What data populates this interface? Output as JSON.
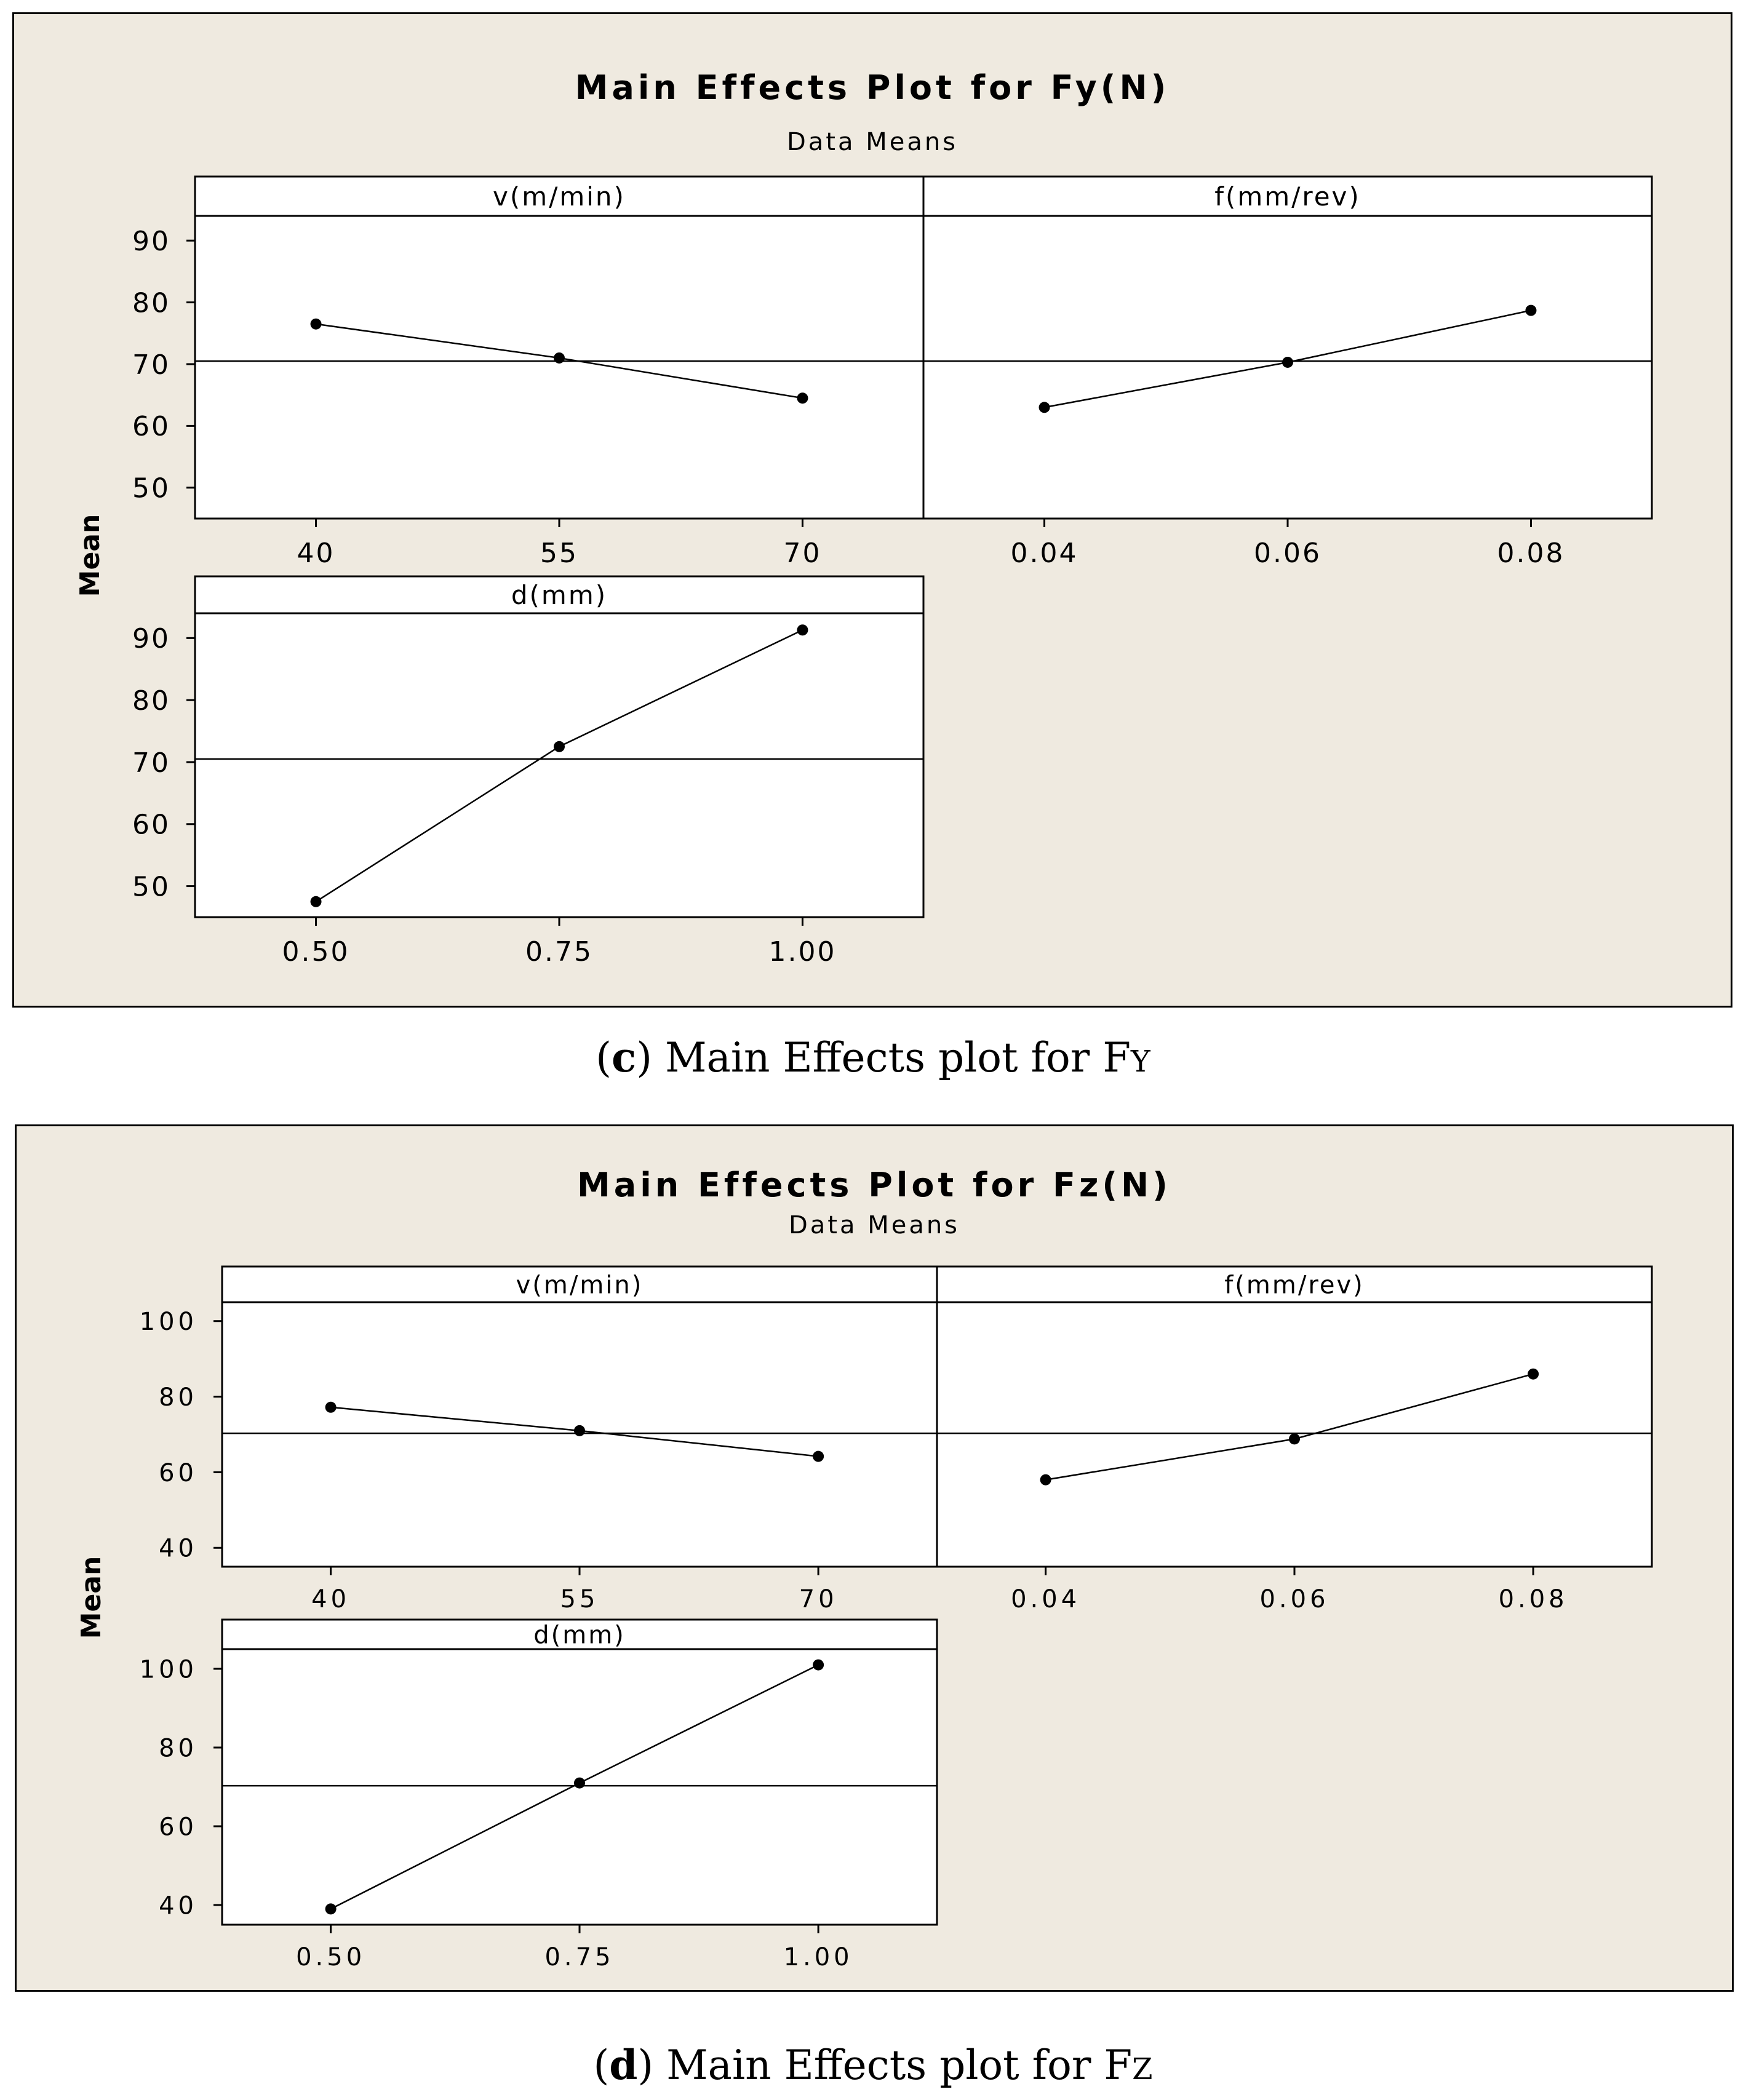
{
  "figures": [
    {
      "title": "Main Effects Plot for Fy(N)",
      "subtitle": "Data Means",
      "ylabel": "Mean",
      "caption": {
        "letter": "c",
        "text": "Main Effects plot for F",
        "sub": "Y"
      }
    },
    {
      "title": "Main Effects Plot for Fz(N)",
      "subtitle": "Data Means",
      "ylabel": "Mean",
      "caption": {
        "letter": "d",
        "text": "Main Effects plot for F",
        "sub": "Z"
      }
    }
  ],
  "chart_data": [
    {
      "type": "line",
      "title": "Main Effects Plot for Fy(N)",
      "subtitle": "Data Means",
      "ylabel": "Mean",
      "ylim": [
        45,
        94
      ],
      "yticks": [
        50,
        60,
        70,
        80,
        90
      ],
      "grand_mean": 70.5,
      "panels": [
        {
          "name": "v(m/min)",
          "categories": [
            "40",
            "55",
            "70"
          ],
          "values": [
            76.5,
            71,
            64.5
          ]
        },
        {
          "name": "f(mm/rev)",
          "categories": [
            "0.04",
            "0.06",
            "0.08"
          ],
          "values": [
            63,
            70.3,
            78.7
          ]
        },
        {
          "name": "d(mm)",
          "categories": [
            "0.50",
            "0.75",
            "1.00"
          ],
          "values": [
            47.5,
            72.5,
            91.3
          ]
        }
      ]
    },
    {
      "type": "line",
      "title": "Main Effects Plot for Fz(N)",
      "subtitle": "Data Means",
      "ylabel": "Mean",
      "ylim": [
        35,
        105
      ],
      "yticks": [
        40,
        60,
        80,
        100
      ],
      "grand_mean": 70.3,
      "panels": [
        {
          "name": "v(m/min)",
          "categories": [
            "40",
            "55",
            "70"
          ],
          "values": [
            77.2,
            71,
            64.2
          ]
        },
        {
          "name": "f(mm/rev)",
          "categories": [
            "0.04",
            "0.06",
            "0.08"
          ],
          "values": [
            58,
            68.8,
            86
          ]
        },
        {
          "name": "d(mm)",
          "categories": [
            "0.50",
            "0.75",
            "1.00"
          ],
          "values": [
            39,
            71,
            101
          ]
        }
      ]
    }
  ]
}
